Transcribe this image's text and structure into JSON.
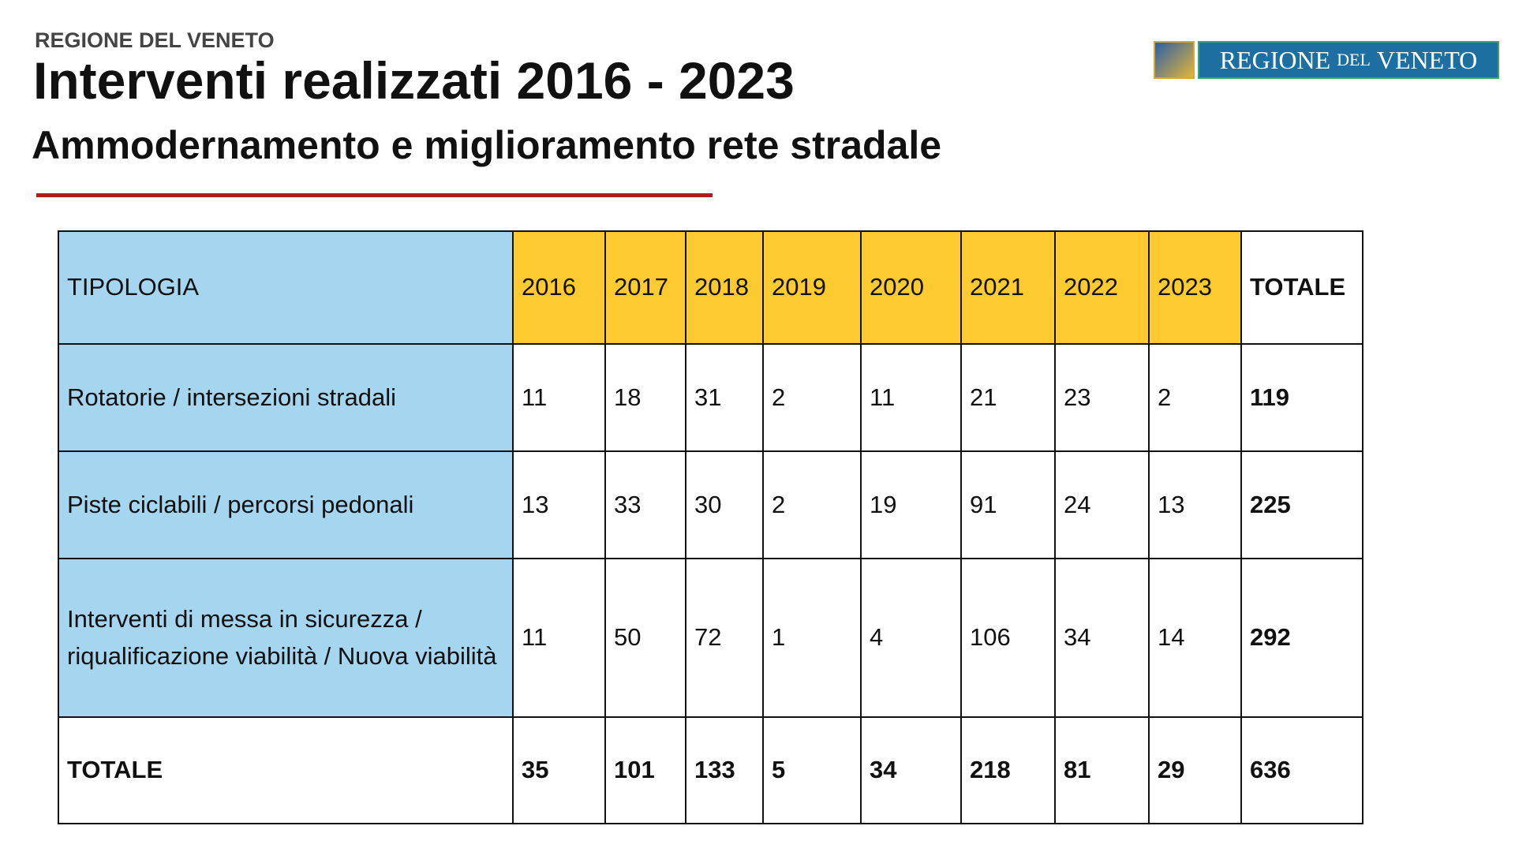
{
  "header": {
    "org": "REGIONE DEL VENETO",
    "title": "Interventi realizzati 2016 - 2023",
    "subtitle": "Ammodernamento e miglioramento rete stradale"
  },
  "logo": {
    "parts": [
      "REGIONE",
      "DEL",
      "VENETO"
    ]
  },
  "table": {
    "columns": [
      "TIPOLOGIA",
      "2016",
      "2017",
      "2018",
      "2019",
      "2020",
      "2021",
      "2022",
      "2023",
      "TOTALE"
    ],
    "rows": [
      [
        "Rotatorie / intersezioni stradali",
        11,
        18,
        31,
        2,
        11,
        21,
        23,
        2,
        119
      ],
      [
        "Piste ciclabili / percorsi pedonali",
        13,
        33,
        30,
        2,
        19,
        91,
        24,
        13,
        225
      ],
      [
        "Interventi di messa in sicurezza / riqualificazione viabilità / Nuova viabilità",
        11,
        50,
        72,
        1,
        4,
        106,
        34,
        14,
        292
      ],
      [
        "TOTALE",
        35,
        101,
        133,
        5,
        34,
        218,
        81,
        29,
        636
      ]
    ]
  }
}
